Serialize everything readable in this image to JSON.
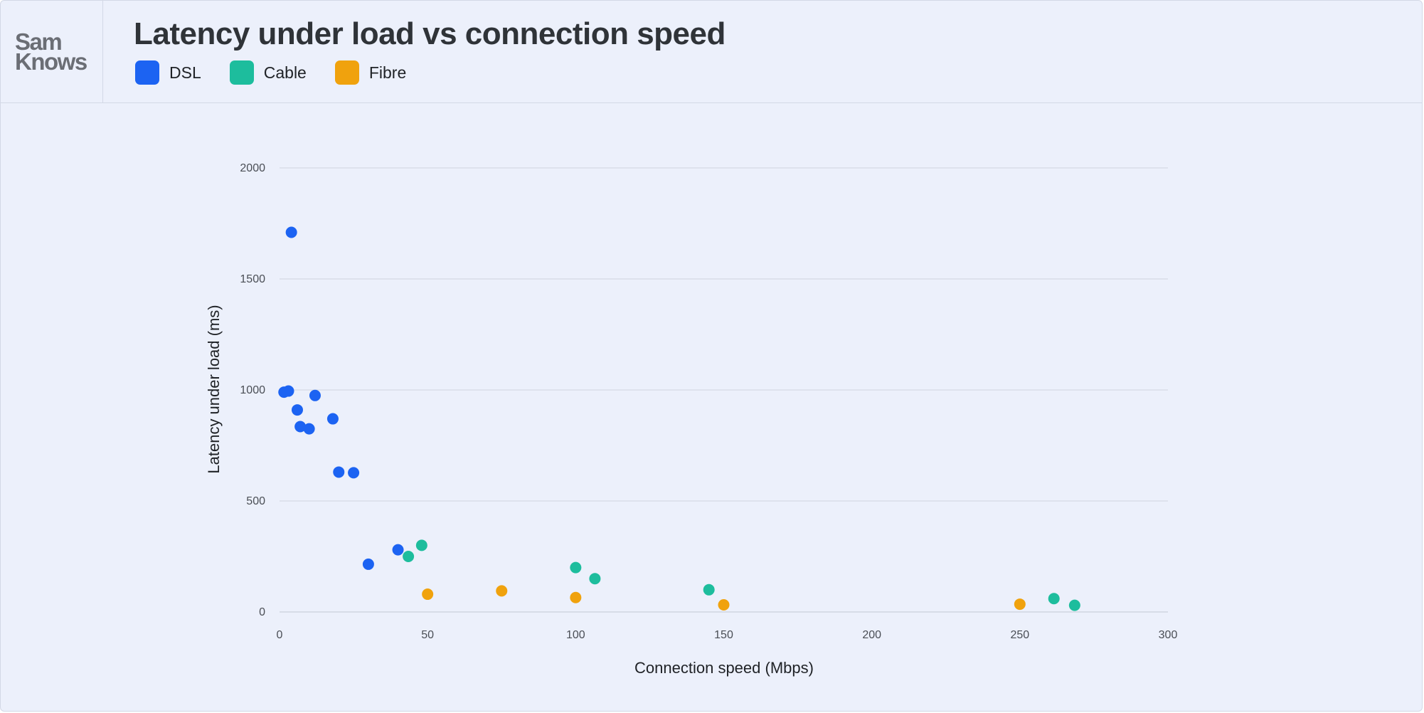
{
  "logo": {
    "line1": "Sam",
    "line2": "Knows"
  },
  "chart_data": {
    "type": "scatter",
    "title": "Latency under load vs connection speed",
    "xlabel": "Connection speed (Mbps)",
    "ylabel": "Latency under load (ms)",
    "xlim": [
      0,
      300
    ],
    "ylim": [
      0,
      2000
    ],
    "xticks": [
      0,
      50,
      100,
      150,
      200,
      250,
      300
    ],
    "yticks": [
      0,
      500,
      1000,
      1500,
      2000
    ],
    "grid": "horizontal",
    "legend": "top-left",
    "series": [
      {
        "name": "DSL",
        "color": "#1c63f2",
        "points": [
          [
            1.5,
            990
          ],
          [
            3,
            995
          ],
          [
            4,
            1710
          ],
          [
            6,
            910
          ],
          [
            7,
            835
          ],
          [
            10,
            825
          ],
          [
            12,
            975
          ],
          [
            18,
            870
          ],
          [
            20,
            630
          ],
          [
            25,
            627
          ],
          [
            30,
            215
          ],
          [
            40,
            280
          ]
        ]
      },
      {
        "name": "Cable",
        "color": "#1dbd9d",
        "points": [
          [
            43.5,
            250
          ],
          [
            48,
            300
          ],
          [
            100,
            200
          ],
          [
            106.5,
            150
          ],
          [
            145,
            100
          ],
          [
            261.5,
            60
          ],
          [
            268.5,
            30
          ]
        ]
      },
      {
        "name": "Fibre",
        "color": "#f0a20d",
        "points": [
          [
            50,
            80
          ],
          [
            75,
            95
          ],
          [
            100,
            65
          ],
          [
            150,
            32
          ],
          [
            250,
            35
          ]
        ]
      }
    ]
  }
}
